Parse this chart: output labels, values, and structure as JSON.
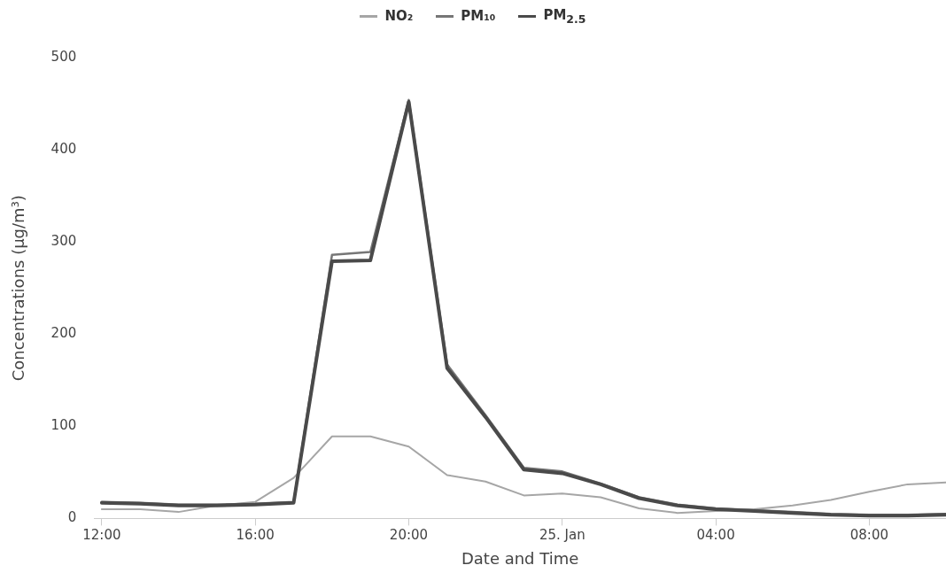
{
  "chart_data": {
    "type": "line",
    "xlabel": "Date and Time",
    "ylabel": "Concentrations (µg/m³)",
    "x": [
      "--01-24T12:00",
      "--01-24T13:00",
      "--01-24T14:00",
      "--01-24T15:00",
      "--01-24T16:00",
      "--01-24T17:00",
      "--01-24T18:00",
      "--01-24T19:00",
      "--01-24T20:00",
      "--01-24T21:00",
      "--01-24T22:00",
      "--01-24T23:00",
      "--01-25T00:00",
      "--01-25T01:00",
      "--01-25T02:00",
      "--01-25T03:00",
      "--01-25T04:00",
      "--01-25T05:00",
      "--01-25T06:00",
      "--01-25T07:00",
      "--01-25T08:00",
      "--01-25T09:00",
      "--01-25T10:00"
    ],
    "series": [
      {
        "name": "NO₂",
        "color": "#a6a6a6",
        "values": [
          10,
          10,
          7,
          14,
          18,
          44,
          89,
          89,
          78,
          47,
          40,
          25,
          27,
          23,
          11,
          6,
          8,
          10,
          14,
          20,
          29,
          37,
          39
        ]
      },
      {
        "name": "PM₁₀",
        "color": "#767676",
        "values": [
          18,
          17,
          15,
          15,
          16,
          18,
          286,
          289,
          454,
          167,
          112,
          55,
          51,
          38,
          23,
          15,
          11,
          9,
          7,
          5,
          4,
          4,
          5
        ]
      },
      {
        "name": "PM$_{2.5}$",
        "color": "#4a4a4a",
        "values": [
          17,
          16,
          14,
          14,
          15,
          17,
          279,
          280,
          452,
          163,
          110,
          53,
          49,
          37,
          22,
          14,
          10,
          8,
          6,
          4,
          3,
          3,
          4
        ]
      }
    ],
    "xlim": [
      "--01-24T11:48",
      "--01-25T10:00"
    ],
    "xticks": [
      {
        "value": "--01-24T12:00",
        "label": "12:00"
      },
      {
        "value": "--01-24T16:00",
        "label": "16:00"
      },
      {
        "value": "--01-24T20:00",
        "label": "20:00"
      },
      {
        "value": "--01-25T00:00",
        "label": "25. Jan"
      },
      {
        "value": "--01-25T04:00",
        "label": "04:00"
      },
      {
        "value": "--01-25T08:00",
        "label": "08:00"
      }
    ],
    "ylim": [
      0,
      500
    ],
    "yticks": [
      0,
      100,
      200,
      300,
      400,
      500
    ],
    "grid": false,
    "legend": "top",
    "marker": "none",
    "line_style": "solid"
  }
}
